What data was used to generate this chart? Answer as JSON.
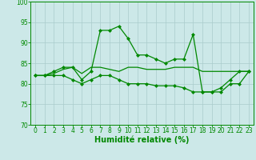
{
  "x": [
    0,
    1,
    2,
    3,
    4,
    5,
    6,
    7,
    8,
    9,
    10,
    11,
    12,
    13,
    14,
    15,
    16,
    17,
    18,
    19,
    20,
    21,
    22,
    23
  ],
  "line1_y": [
    82,
    82,
    83,
    84,
    84,
    81,
    83,
    93,
    93,
    94,
    91,
    87,
    87,
    86,
    85,
    86,
    86,
    92,
    78,
    78,
    79,
    81,
    83,
    83
  ],
  "line2_y": [
    82,
    82,
    82.5,
    83.5,
    84,
    82.5,
    84,
    84,
    83.5,
    83,
    84,
    84,
    83.5,
    83.5,
    83.5,
    84,
    84,
    84,
    83,
    83,
    83,
    83,
    83,
    83
  ],
  "line3_y": [
    82,
    82,
    82,
    82,
    81,
    80,
    81,
    82,
    82,
    81,
    80,
    80,
    80,
    79.5,
    79.5,
    79.5,
    79,
    78,
    78,
    78,
    78,
    80,
    80,
    83
  ],
  "bg_color": "#cce8e8",
  "grid_color": "#aacccc",
  "line_color": "#008800",
  "markersize": 2.5,
  "linewidth": 0.9,
  "xlabel": "Humidité relative (%)",
  "xlabel_fontsize": 7,
  "tick_fontsize": 5.5,
  "ylim": [
    70,
    100
  ],
  "xlim_min": -0.5,
  "xlim_max": 23.5,
  "yticks": [
    70,
    75,
    80,
    85,
    90,
    95,
    100
  ],
  "xticks": [
    0,
    1,
    2,
    3,
    4,
    5,
    6,
    7,
    8,
    9,
    10,
    11,
    12,
    13,
    14,
    15,
    16,
    17,
    18,
    19,
    20,
    21,
    22,
    23
  ]
}
